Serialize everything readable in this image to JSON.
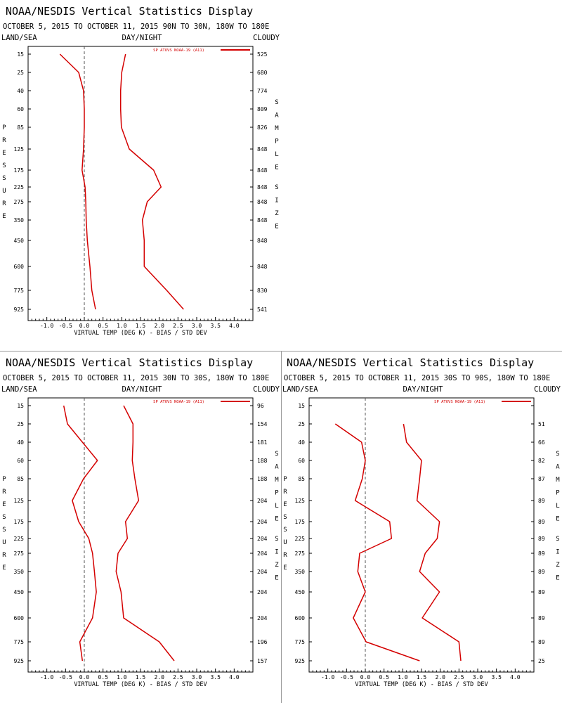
{
  "colors": {
    "series": "#d40000",
    "axis": "#000000",
    "zero_line": "#555555",
    "divider": "#9a9a9a"
  },
  "chart_data": [
    {
      "type": "line",
      "title": "NOAA/NESDIS Vertical Statistics Display",
      "subtitle": "OCTOBER 5, 2015 TO OCTOBER 11, 2015 90N TO 30N, 180W TO 180E",
      "header_left": "LAND/SEA",
      "header_mid": "DAY/NIGHT",
      "header_right": "CLOUDY",
      "legend": "SP ATOVS NOAA-19 (A11)",
      "legend_placement": "top-right",
      "xlabel": "VIRTUAL TEMP (DEG K) - BIAS / STD DEV",
      "ylabel": "PRESSURE",
      "y2label": "SAMPLE SIZE",
      "xlim": [
        -1.5,
        4.5
      ],
      "xticks": [
        "-1.0",
        "-0.5",
        "0.0",
        "0.5",
        "1.0",
        "1.5",
        "2.0",
        "2.5",
        "3.0",
        "3.5",
        "4.0"
      ],
      "pressure_levels": [
        "15",
        "25",
        "40",
        "60",
        "85",
        "125",
        "175",
        "225",
        "275",
        "350",
        "450",
        "600",
        "775",
        "925"
      ],
      "sample_size": [
        "525",
        "680",
        "774",
        "809",
        "826",
        "848",
        "848",
        "848",
        "848",
        "848",
        "848",
        "848",
        "830",
        "541"
      ],
      "bias": [
        -0.65,
        -0.15,
        -0.02,
        0.0,
        0.0,
        -0.02,
        -0.06,
        0.02,
        0.04,
        0.05,
        0.08,
        0.15,
        0.2,
        0.3
      ],
      "std_dev": [
        1.1,
        1.0,
        0.97,
        0.97,
        0.99,
        1.2,
        1.85,
        2.05,
        1.68,
        1.55,
        1.6,
        1.6,
        2.2,
        2.65
      ]
    },
    {
      "type": "line",
      "title": "NOAA/NESDIS Vertical Statistics Display",
      "subtitle": "OCTOBER 5, 2015 TO OCTOBER 11, 2015 30N TO 30S, 180W TO 180E",
      "header_left": "LAND/SEA",
      "header_mid": "DAY/NIGHT",
      "header_right": "CLOUDY",
      "legend": "SP ATOVS NOAA-19 (A11)",
      "legend_placement": "top-right",
      "xlabel": "VIRTUAL TEMP (DEG K) - BIAS / STD DEV",
      "ylabel": "PRESSURE",
      "y2label": "SAMPLE SIZE",
      "xlim": [
        -1.5,
        4.5
      ],
      "xticks": [
        "-1.0",
        "-0.5",
        "0.0",
        "0.5",
        "1.0",
        "1.5",
        "2.0",
        "2.5",
        "3.0",
        "3.5",
        "4.0"
      ],
      "pressure_levels": [
        "15",
        "25",
        "40",
        "60",
        "85",
        "125",
        "175",
        "225",
        "275",
        "350",
        "450",
        "600",
        "775",
        "925"
      ],
      "sample_size": [
        "96",
        "154",
        "181",
        "188",
        "188",
        "204",
        "204",
        "204",
        "204",
        "204",
        "204",
        "204",
        "196",
        "157"
      ],
      "bias": [
        -0.55,
        -0.45,
        -0.05,
        0.35,
        -0.02,
        -0.32,
        -0.15,
        0.12,
        0.22,
        0.27,
        0.32,
        0.22,
        -0.12,
        -0.05
      ],
      "std_dev": [
        1.05,
        1.3,
        1.3,
        1.28,
        1.35,
        1.45,
        1.1,
        1.15,
        0.9,
        0.85,
        0.98,
        1.05,
        2.0,
        2.4
      ]
    },
    {
      "type": "line",
      "title": "NOAA/NESDIS Vertical Statistics Display",
      "subtitle": "OCTOBER 5, 2015 TO OCTOBER 11, 2015 30S TO 90S, 180W TO 180E",
      "header_left": "LAND/SEA",
      "header_mid": "DAY/NIGHT",
      "header_right": "CLOUDY",
      "legend": "SP ATOVS NOAA-19 (A11)",
      "legend_placement": "top-right",
      "xlabel": "VIRTUAL TEMP (DEG K) - BIAS / STD DEV",
      "ylabel": "PRESSURE",
      "y2label": "SAMPLE SIZE",
      "xlim": [
        -1.5,
        4.5
      ],
      "xticks": [
        "-1.0",
        "-0.5",
        "0.0",
        "0.5",
        "1.0",
        "1.5",
        "2.0",
        "2.5",
        "3.0",
        "3.5",
        "4.0"
      ],
      "pressure_levels": [
        "15",
        "25",
        "40",
        "60",
        "85",
        "125",
        "175",
        "225",
        "275",
        "350",
        "450",
        "600",
        "775",
        "925"
      ],
      "sample_size": [
        "",
        "51",
        "66",
        "82",
        "87",
        "89",
        "89",
        "89",
        "89",
        "89",
        "89",
        "89",
        "89",
        "25"
      ],
      "bias": [
        null,
        -0.8,
        -0.1,
        0.0,
        -0.08,
        -0.27,
        0.65,
        0.7,
        -0.15,
        -0.2,
        0.0,
        -0.32,
        0.02,
        1.45
      ],
      "std_dev": [
        null,
        1.02,
        1.1,
        1.5,
        1.45,
        1.38,
        1.98,
        1.92,
        1.6,
        1.45,
        1.98,
        1.52,
        2.5,
        2.55
      ]
    }
  ]
}
